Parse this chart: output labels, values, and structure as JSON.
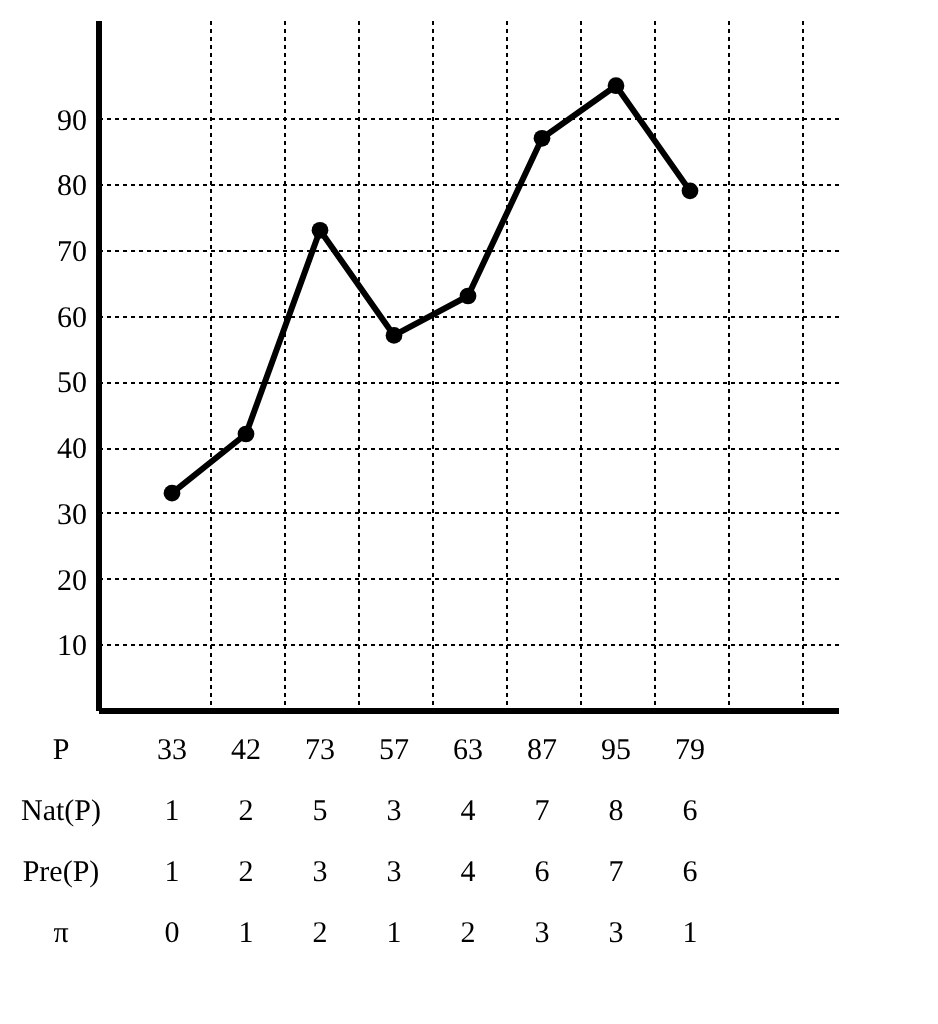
{
  "chart_data": {
    "type": "line",
    "categories": [
      null,
      null,
      null,
      null,
      null,
      null,
      null,
      null
    ],
    "values": [
      33,
      42,
      73,
      57,
      63,
      87,
      95,
      79
    ],
    "color": "#000000",
    "xlabel": "P",
    "data_labels": true,
    "ylim": [
      0,
      105
    ],
    "yticks": [
      10,
      20,
      30,
      40,
      50,
      60,
      70,
      80,
      90
    ],
    "grid": true,
    "marker": "circle",
    "line_style": "solid",
    "annotations": [
      "Nat(P) 1 2 5 3 4 7 8 6",
      "Pre(P) 1 2 3 3 4 6 7 6",
      "π 0 1 2 1 2 3 3 1"
    ]
  }
}
